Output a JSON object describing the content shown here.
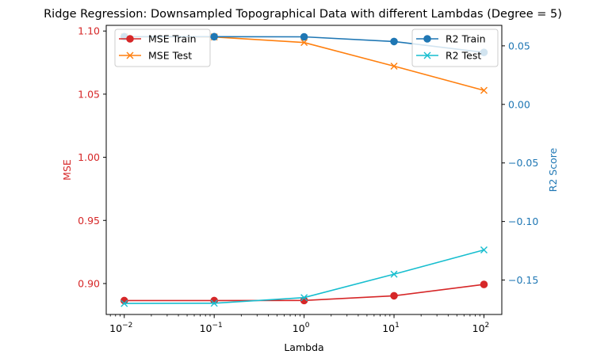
{
  "chart_data": {
    "type": "line",
    "title": "Ridge Regression: Downsampled Topographical Data with different Lambdas (Degree = 5)",
    "xlabel": "Lambda",
    "x_scale": "log",
    "x": [
      0.01,
      0.1,
      1,
      10,
      100
    ],
    "x_ticks": [
      {
        "value": 0.01,
        "base": "10",
        "exp": "−2"
      },
      {
        "value": 0.1,
        "base": "10",
        "exp": "−1"
      },
      {
        "value": 1,
        "base": "10",
        "exp": "0"
      },
      {
        "value": 10,
        "base": "10",
        "exp": "1"
      },
      {
        "value": 100,
        "base": "10",
        "exp": "2"
      }
    ],
    "xlim": [
      0.0063,
      158
    ],
    "left_axis": {
      "label": "MSE",
      "color": "#d62728",
      "ylim": [
        0.8755,
        1.1045
      ],
      "ticks": [
        {
          "value": 0.9,
          "label": "0.90"
        },
        {
          "value": 0.95,
          "label": "0.95"
        },
        {
          "value": 1.0,
          "label": "1.00"
        },
        {
          "value": 1.05,
          "label": "1.05"
        },
        {
          "value": 1.1,
          "label": "1.10"
        }
      ]
    },
    "right_axis": {
      "label": "R2 Score",
      "color": "#1f77b4",
      "ylim": [
        -0.1794,
        0.0675
      ],
      "ticks": [
        {
          "value": 0.05,
          "label": "0.05"
        },
        {
          "value": 0.0,
          "label": "0.00"
        },
        {
          "value": -0.05,
          "label": "−0.05"
        },
        {
          "value": -0.1,
          "label": "−0.10"
        },
        {
          "value": -0.15,
          "label": "−0.15"
        }
      ]
    },
    "series": [
      {
        "name": "MSE Train",
        "axis": "left",
        "color": "#d62728",
        "marker": "circle",
        "values": [
          0.8865,
          0.8865,
          0.8866,
          0.8903,
          0.8993
        ]
      },
      {
        "name": "MSE Test",
        "axis": "left",
        "color": "#ff7f0e",
        "marker": "x",
        "values": [
          1.0955,
          1.0953,
          1.0909,
          1.0722,
          1.053
        ]
      },
      {
        "name": "R2 Train",
        "axis": "right",
        "color": "#1f77b4",
        "marker": "circle",
        "values": [
          0.0578,
          0.0578,
          0.0577,
          0.0537,
          0.0444
        ]
      },
      {
        "name": "R2 Test",
        "axis": "right",
        "color": "#17becf",
        "marker": "x",
        "values": [
          -0.17,
          -0.1698,
          -0.165,
          -0.145,
          -0.1243
        ]
      }
    ],
    "legends": [
      {
        "placement": "upper-left",
        "items": [
          "MSE Train",
          "MSE Test"
        ]
      },
      {
        "placement": "upper-right",
        "items": [
          "R2 Train",
          "R2 Test"
        ]
      }
    ],
    "grid": false
  }
}
